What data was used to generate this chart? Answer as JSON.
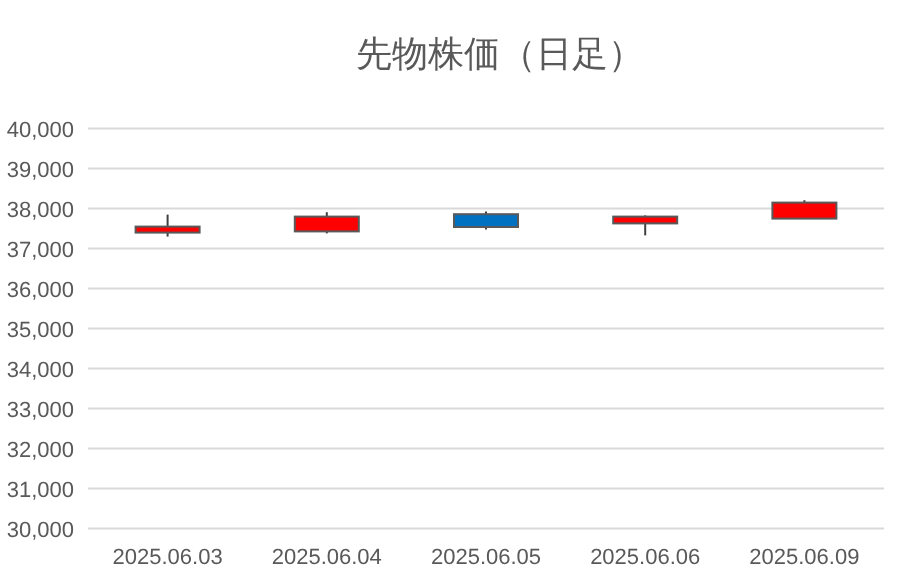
{
  "chart_data": {
    "type": "candlestick",
    "title": "先物株価（日足）",
    "categories": [
      "2025.06.03",
      "2025.06.04",
      "2025.06.05",
      "2025.06.06",
      "2025.06.09"
    ],
    "ohlc": [
      [
        37400,
        37850,
        37300,
        37550
      ],
      [
        37430,
        37910,
        37380,
        37800
      ],
      [
        37860,
        37930,
        37480,
        37540
      ],
      [
        37630,
        37830,
        37330,
        37800
      ],
      [
        37750,
        38210,
        37750,
        38150
      ]
    ],
    "colors": [
      "#ff0000",
      "#ff0000",
      "#0070c0",
      "#ff0000",
      "#ff0000"
    ],
    "ylim": [
      30000,
      40000
    ],
    "yticks": [
      {
        "value": 30000,
        "label": "30,000"
      },
      {
        "value": 31000,
        "label": "31,000"
      },
      {
        "value": 32000,
        "label": "32,000"
      },
      {
        "value": 33000,
        "label": "33,000"
      },
      {
        "value": 34000,
        "label": "34,000"
      },
      {
        "value": 35000,
        "label": "35,000"
      },
      {
        "value": 36000,
        "label": "36,000"
      },
      {
        "value": 37000,
        "label": "37,000"
      },
      {
        "value": 38000,
        "label": "38,000"
      },
      {
        "value": 39000,
        "label": "39,000"
      },
      {
        "value": 40000,
        "label": "40,000"
      }
    ],
    "grid": "y"
  }
}
